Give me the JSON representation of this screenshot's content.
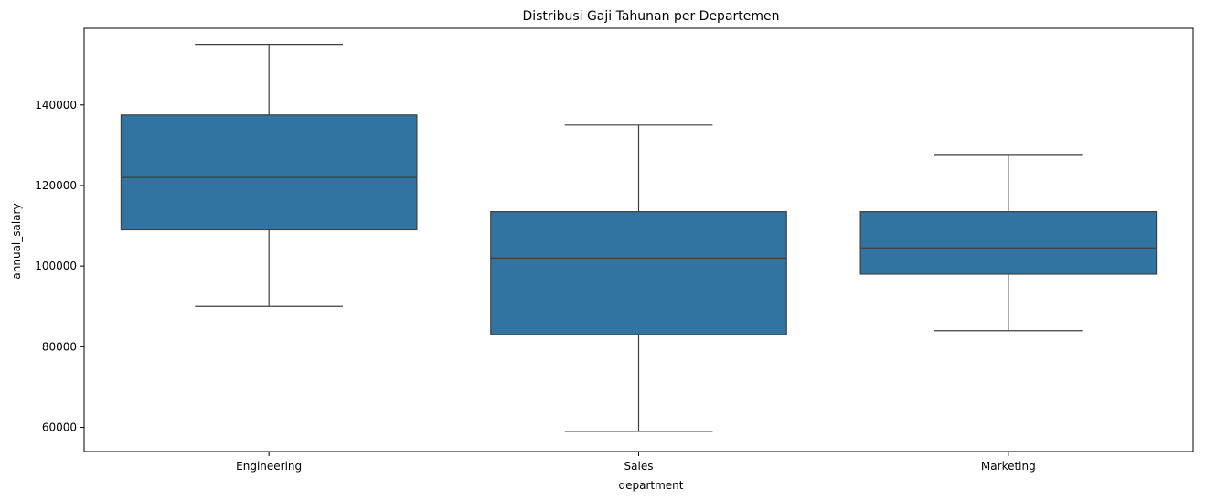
{
  "chart_data": {
    "type": "box",
    "title": "Distribusi Gaji Tahunan per Departemen",
    "xlabel": "department",
    "ylabel": "annual_salary",
    "categories": [
      "Engineering",
      "Sales",
      "Marketing"
    ],
    "boxes": [
      {
        "category": "Engineering",
        "whisker_low": 90000,
        "q1": 109000,
        "median": 122000,
        "q3": 137500,
        "whisker_high": 155000
      },
      {
        "category": "Sales",
        "whisker_low": 59000,
        "q1": 83000,
        "median": 102000,
        "q3": 113500,
        "whisker_high": 135000
      },
      {
        "category": "Marketing",
        "whisker_low": 84000,
        "q1": 98000,
        "median": 104500,
        "q3": 113500,
        "whisker_high": 127500
      }
    ],
    "yticks": [
      60000,
      80000,
      100000,
      120000,
      140000
    ],
    "ylim": [
      54000,
      159000
    ],
    "grid": false,
    "legend": "none",
    "box_color": "#3274a1",
    "line_color": "#3f3f3f"
  }
}
